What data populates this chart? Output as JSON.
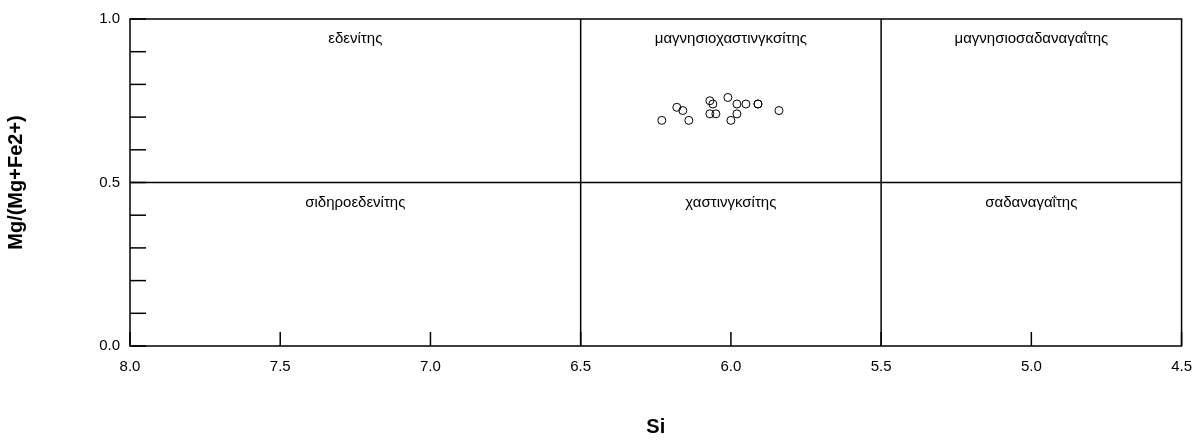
{
  "chart_data": {
    "type": "scatter",
    "xlabel": "Si",
    "ylabel": "Mg/(Mg+Fe2+)",
    "xlim": [
      8.0,
      4.5
    ],
    "xticks": [
      {
        "value": 8,
        "label": "8.0"
      },
      {
        "value": 7.5,
        "label": "7.5"
      },
      {
        "value": 7,
        "label": "7.0"
      },
      {
        "value": 6.5,
        "label": "6.5"
      },
      {
        "value": 6,
        "label": "6.0"
      },
      {
        "value": 5.5,
        "label": "5.5"
      },
      {
        "value": 5,
        "label": "5.0"
      },
      {
        "value": 4.5,
        "label": "4.5"
      }
    ],
    "ylim": [
      0,
      1
    ],
    "yticks": [
      {
        "value": 0,
        "label": "0.0"
      },
      {
        "value": 0.1,
        "label": null
      },
      {
        "value": 0.2,
        "label": null
      },
      {
        "value": 0.3,
        "label": null
      },
      {
        "value": 0.4,
        "label": null
      },
      {
        "value": 0.5,
        "label": "0.5"
      },
      {
        "value": 0.6,
        "label": null
      },
      {
        "value": 0.7,
        "label": null
      },
      {
        "value": 0.8,
        "label": null
      },
      {
        "value": 0.9,
        "label": null
      },
      {
        "value": 1,
        "label": "1.0"
      }
    ],
    "x": [
      6.23,
      6.18,
      6.16,
      6.14,
      6.07,
      6.06,
      6.07,
      6.05,
      6.01,
      5.98,
      5.95,
      5.98,
      6.0,
      5.91,
      5.91,
      5.84
    ],
    "values": [
      0.69,
      0.73,
      0.72,
      0.69,
      0.75,
      0.74,
      0.71,
      0.71,
      0.76,
      0.74,
      0.74,
      0.71,
      0.69,
      0.74,
      0.74,
      0.72
    ],
    "color": "#000000",
    "marker": "circle",
    "grid": false,
    "legend": false,
    "ref_lines": [
      {
        "axis": "x",
        "value": 6.5,
        "color": "#000000"
      },
      {
        "axis": "x",
        "value": 5.5,
        "color": "#000000"
      },
      {
        "axis": "y",
        "value": 0.5,
        "color": "#000000"
      }
    ],
    "annotations": [
      "εδενίτης",
      "μαγνησιοχαστινγκσίτης",
      "μαγνησιοσαδαναγαΐτης",
      "σιδηροεδενίτης",
      "χαστινγκσίτης",
      "σαδαναγαΐτης"
    ]
  }
}
